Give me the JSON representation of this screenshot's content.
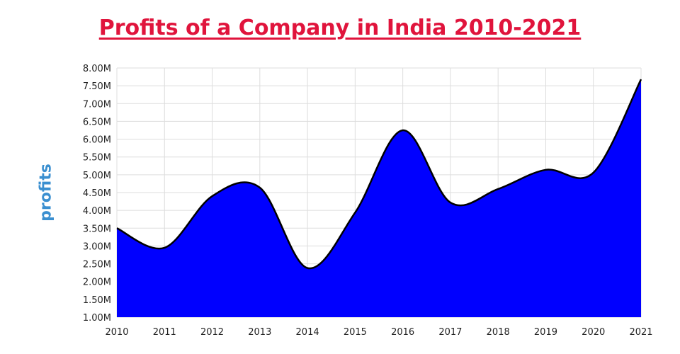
{
  "chart_data": {
    "type": "area",
    "title": "Profits of a Company in India 2010-2021",
    "xlabel": "",
    "ylabel": "profits",
    "categories": [
      "2010",
      "2011",
      "2012",
      "2013",
      "2014",
      "2015",
      "2016",
      "2017",
      "2018",
      "2019",
      "2020",
      "2021"
    ],
    "series": [
      {
        "name": "profits",
        "values": [
          3.5,
          2.95,
          4.4,
          4.64,
          2.38,
          3.94,
          6.25,
          4.22,
          4.6,
          5.14,
          5.06,
          7.68
        ]
      }
    ],
    "unit": "M",
    "ylim": [
      1.0,
      8.0
    ],
    "ytick_step": 0.5,
    "ytick_labels": [
      "1.00M",
      "1.50M",
      "2.00M",
      "2.50M",
      "3.00M",
      "3.50M",
      "4.00M",
      "4.50M",
      "5.00M",
      "5.50M",
      "6.00M",
      "6.50M",
      "7.00M",
      "7.50M",
      "8.00M"
    ],
    "grid": true,
    "legend": "none",
    "colors": {
      "fill": "#0000ff",
      "line": "#000000",
      "title": "#e0143c",
      "ylabel": "#3a8fd0",
      "grid": "#dddddd"
    }
  }
}
